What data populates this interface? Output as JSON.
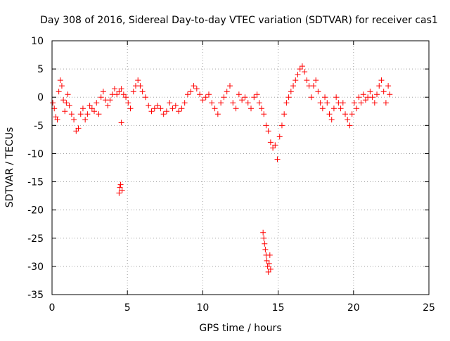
{
  "chart_data": {
    "type": "scatter",
    "title": "Day 308 of 2016, Sidereal Day-to-day VTEC variation (SDTVAR) for receiver cas1",
    "xlabel": "GPS time / hours",
    "ylabel": "SDTVAR / TECUs",
    "xlim": [
      0,
      25
    ],
    "ylim": [
      -35,
      10
    ],
    "xticks": [
      0,
      5,
      10,
      15,
      20,
      25
    ],
    "yticks": [
      10,
      5,
      0,
      -5,
      -10,
      -15,
      -20,
      -25,
      -30,
      -35
    ],
    "xtick_labels": [
      "0",
      "5",
      "10",
      "15",
      "20",
      "25"
    ],
    "ytick_labels": [
      "10",
      "5",
      "0",
      "-5",
      "-10",
      "-15",
      "-20",
      "-25",
      "-30",
      "-35"
    ],
    "grid": true,
    "marker": "+",
    "marker_color": "#ff0000",
    "series": [
      {
        "name": "cas1",
        "x": [
          0.05,
          0.15,
          0.25,
          0.35,
          0.45,
          0.55,
          0.65,
          0.75,
          0.85,
          0.95,
          1.05,
          1.15,
          1.3,
          1.45,
          1.6,
          1.75,
          1.9,
          2.05,
          2.2,
          2.35,
          2.5,
          2.65,
          2.8,
          2.95,
          3.1,
          3.25,
          3.4,
          3.55,
          3.7,
          3.85,
          4.0,
          4.15,
          4.3,
          4.45,
          4.6,
          4.75,
          4.9,
          5.05,
          5.2,
          5.4,
          5.55,
          5.7,
          5.85,
          6.0,
          6.2,
          6.4,
          6.6,
          6.8,
          7.0,
          7.2,
          7.4,
          7.6,
          7.8,
          8.0,
          8.2,
          8.4,
          8.6,
          8.8,
          9.0,
          9.2,
          9.4,
          9.6,
          9.8,
          10.0,
          10.2,
          10.4,
          10.6,
          10.8,
          11.0,
          11.2,
          11.4,
          11.6,
          11.8,
          12.0,
          12.2,
          12.4,
          12.6,
          12.8,
          13.0,
          13.2,
          13.4,
          13.6,
          13.75,
          13.9,
          14.05,
          14.2,
          14.35,
          14.5,
          14.65,
          14.8,
          14.95,
          15.1,
          15.25,
          15.4,
          15.55,
          15.7,
          15.85,
          16.0,
          16.15,
          16.3,
          16.45,
          16.6,
          16.75,
          16.9,
          17.05,
          17.2,
          17.35,
          17.5,
          17.65,
          17.8,
          17.95,
          18.1,
          18.25,
          18.4,
          18.55,
          18.7,
          18.85,
          19.0,
          19.15,
          19.3,
          19.45,
          19.6,
          19.75,
          19.9,
          20.05,
          20.2,
          20.35,
          20.5,
          20.65,
          20.8,
          20.95,
          21.1,
          21.25,
          21.4,
          21.55,
          21.7,
          21.85,
          22.0,
          22.15,
          22.3,
          22.4,
          4.45,
          4.5,
          4.55,
          4.6,
          4.65,
          14.0,
          14.05,
          14.1,
          14.15,
          14.2,
          14.25,
          14.3,
          14.35,
          14.4,
          14.45,
          14.5
        ],
        "y": [
          -1,
          -2,
          -3.5,
          -4,
          1,
          3,
          2,
          -0.5,
          -2.5,
          -1,
          0.5,
          -1.5,
          -3,
          -4,
          -6,
          -5.5,
          -3,
          -2,
          -4,
          -3,
          -1.5,
          -2,
          -2.5,
          -1,
          -3,
          0,
          1,
          -0.5,
          -1.5,
          -0.5,
          0.5,
          1.5,
          0.5,
          1,
          1.5,
          0.5,
          0,
          -1,
          -2,
          1,
          2,
          3,
          2,
          1,
          0,
          -1.5,
          -2.5,
          -2,
          -1.5,
          -2,
          -3,
          -2.5,
          -1,
          -2,
          -1.5,
          -2.5,
          -2,
          -1,
          0.5,
          1,
          2,
          1.5,
          0.5,
          -0.5,
          0,
          0.5,
          -1,
          -2,
          -3,
          -1,
          0,
          1,
          2,
          -1,
          -2,
          0.5,
          -0.5,
          0,
          -1,
          -2,
          0,
          0.5,
          -1,
          -2,
          -3,
          -5,
          -6,
          -8,
          -9,
          -8.5,
          -11,
          -7,
          -5,
          -3,
          -1,
          0,
          1,
          2,
          3,
          4,
          5,
          5.5,
          4.5,
          3,
          2,
          0,
          2,
          3,
          1,
          -1,
          -2,
          0,
          -1,
          -3,
          -4,
          -2,
          0,
          -1,
          -2,
          -1,
          -3,
          -4,
          -5,
          -3,
          -1,
          -2,
          0,
          -1,
          0.5,
          -0.5,
          0,
          1,
          0,
          -1,
          0.5,
          2,
          3,
          1,
          -1,
          2,
          0.5,
          -17,
          -16,
          -15.5,
          -4.5,
          -16.5,
          -24,
          -25,
          -26,
          -27,
          -28,
          -29,
          -30,
          -31,
          -29.5,
          -28,
          -30.5
        ]
      }
    ]
  }
}
